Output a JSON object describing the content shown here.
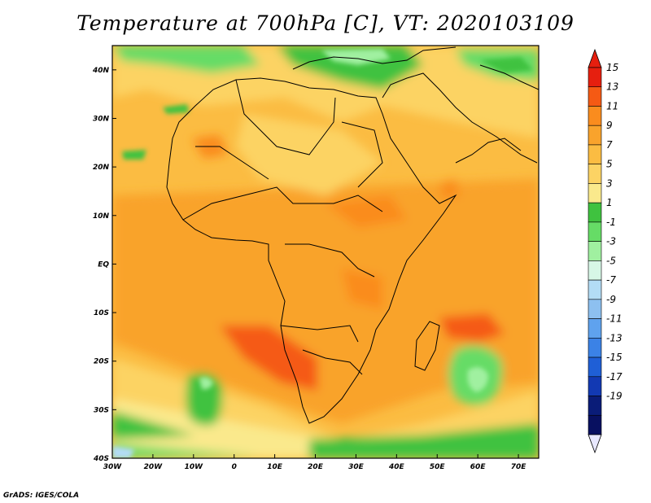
{
  "title": "Temperature at 700hPa [C], VT: 2020103109",
  "credit": "GrADS: IGES/COLA",
  "map": {
    "lon_range": [
      -30,
      75
    ],
    "lat_range": [
      -40,
      45
    ],
    "lon_ticks": [
      {
        "value": -30,
        "label": "30W"
      },
      {
        "value": -20,
        "label": "20W"
      },
      {
        "value": -10,
        "label": "10W"
      },
      {
        "value": 0,
        "label": "0"
      },
      {
        "value": 10,
        "label": "10E"
      },
      {
        "value": 20,
        "label": "20E"
      },
      {
        "value": 30,
        "label": "30E"
      },
      {
        "value": 40,
        "label": "40E"
      },
      {
        "value": 50,
        "label": "50E"
      },
      {
        "value": 60,
        "label": "60E"
      },
      {
        "value": 70,
        "label": "70E"
      }
    ],
    "lat_ticks": [
      {
        "value": 40,
        "label": "40N"
      },
      {
        "value": 30,
        "label": "30N"
      },
      {
        "value": 20,
        "label": "20N"
      },
      {
        "value": 10,
        "label": "10N"
      },
      {
        "value": 0,
        "label": "EQ"
      },
      {
        "value": -10,
        "label": "10S"
      },
      {
        "value": -20,
        "label": "20S"
      },
      {
        "value": -30,
        "label": "30S"
      },
      {
        "value": -40,
        "label": "40S"
      }
    ]
  },
  "colorbar": {
    "labels": [
      "15",
      "13",
      "11",
      "9",
      "7",
      "5",
      "3",
      "1",
      "-1",
      "-3",
      "-5",
      "-7",
      "-9",
      "-11",
      "-13",
      "-15",
      "-17",
      "-19"
    ],
    "colors": [
      "#e61f0f",
      "#f55a14",
      "#fa8c1e",
      "#f9a32c",
      "#fbbc42",
      "#fcd364",
      "#fae98c",
      "#3fc23f",
      "#66dc66",
      "#a0f0a0",
      "#d7f7e6",
      "#b3dcf5",
      "#8dc0f0",
      "#5fa2ee",
      "#3b82e6",
      "#1f5fd6",
      "#1239b3",
      "#0a1c78",
      "#081060"
    ],
    "top_color": "#e61f0f",
    "bottom_color": "#e8e8ff"
  }
}
